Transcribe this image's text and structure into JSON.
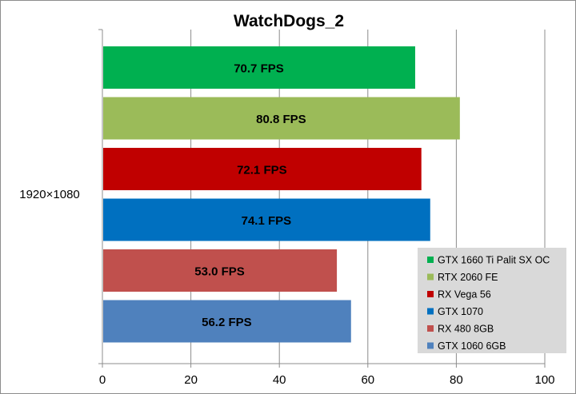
{
  "chart_data": {
    "type": "bar",
    "orientation": "horizontal",
    "title": "WatchDogs_2",
    "category": "1920×1080",
    "xlim": [
      0,
      100
    ],
    "xticks": [
      0,
      20,
      40,
      60,
      80,
      100
    ],
    "grid": true,
    "legend_position": "bottom-right",
    "series": [
      {
        "name": "GTX 1660 Ti Palit SX OC",
        "value": 70.7,
        "label": "70.7 FPS",
        "color": "#00b050"
      },
      {
        "name": "RTX 2060 FE",
        "value": 80.8,
        "label": "80.8 FPS",
        "color": "#9bbb59"
      },
      {
        "name": "RX Vega 56",
        "value": 72.1,
        "label": "72.1 FPS",
        "color": "#c00000"
      },
      {
        "name": "GTX 1070",
        "value": 74.1,
        "label": "74.1 FPS",
        "color": "#0070c0"
      },
      {
        "name": "RX 480 8GB",
        "value": 53.0,
        "label": "53.0 FPS",
        "color": "#c0504d"
      },
      {
        "name": "GTX 1060 6GB",
        "value": 56.2,
        "label": "56.2 FPS",
        "color": "#4f81bd"
      }
    ]
  }
}
